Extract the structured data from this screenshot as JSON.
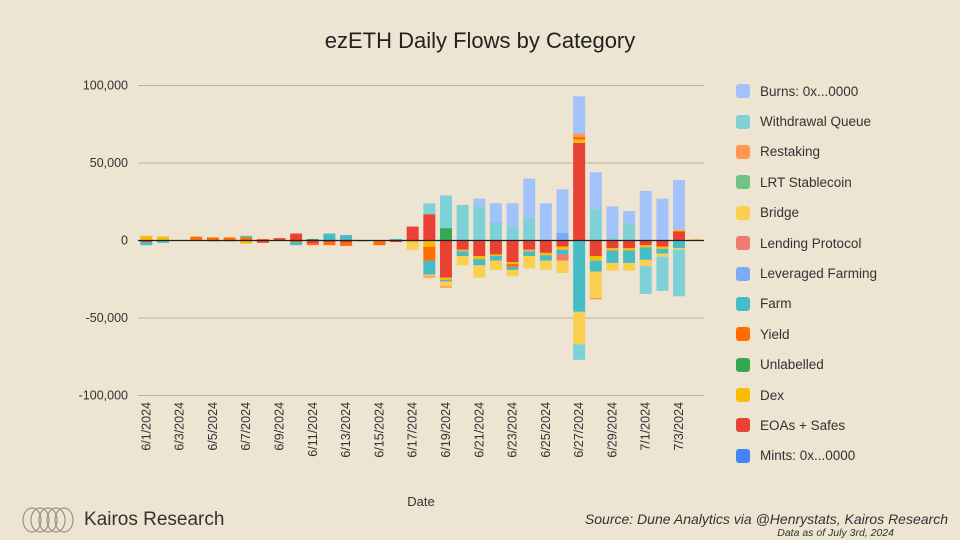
{
  "chart_data": {
    "type": "bar",
    "stacked": true,
    "title": "ezETH Daily Flows by Category",
    "xlabel": "Date",
    "ylabel": "",
    "ylim": [
      -100000,
      100000
    ],
    "y_ticks": [
      100000,
      50000,
      0,
      -50000,
      -100000
    ],
    "y_tick_labels": [
      "100,000",
      "50,000",
      "0",
      "-50,000",
      "-100,000"
    ],
    "categories": [
      "6/1/2024",
      "6/2/2024",
      "6/3/2024",
      "6/4/2024",
      "6/5/2024",
      "6/6/2024",
      "6/7/2024",
      "6/8/2024",
      "6/9/2024",
      "6/10/2024",
      "6/11/2024",
      "6/12/2024",
      "6/13/2024",
      "6/14/2024",
      "6/15/2024",
      "6/16/2024",
      "6/17/2024",
      "6/18/2024",
      "6/19/2024",
      "6/20/2024",
      "6/21/2024",
      "6/22/2024",
      "6/23/2024",
      "6/24/2024",
      "6/25/2024",
      "6/26/2024",
      "6/27/2024",
      "6/28/2024",
      "6/29/2024",
      "6/30/2024",
      "7/1/2024",
      "7/2/2024",
      "7/3/2024",
      "7/4/2024"
    ],
    "x_tick_labels": [
      "6/1/2024",
      "6/3/2024",
      "6/5/2024",
      "6/7/2024",
      "6/9/2024",
      "6/11/2024",
      "6/13/2024",
      "6/15/2024",
      "6/17/2024",
      "6/19/2024",
      "6/21/2024",
      "6/23/2024",
      "6/25/2024",
      "6/27/2024",
      "6/29/2024",
      "7/1/2024",
      "7/3/2024"
    ],
    "series": [
      {
        "name": "Mints: 0x...0000",
        "color": "#4285f4",
        "values": [
          0,
          0,
          0,
          0,
          0,
          0,
          0,
          0,
          0,
          0,
          0,
          0,
          0,
          0,
          0,
          0,
          0,
          0,
          0,
          0,
          0,
          0,
          0,
          0,
          0,
          0,
          0,
          0,
          0,
          0,
          0,
          0,
          0,
          0
        ]
      },
      {
        "name": "EOAs + Safes",
        "color": "#e94235",
        "values": [
          -1000,
          -500,
          0,
          500,
          -500,
          -500,
          -500,
          -1500,
          1500,
          4500,
          -2000,
          -1000,
          -1500,
          -500,
          -500,
          -1000,
          9000,
          17000,
          -24000,
          -6000,
          -10000,
          -9000,
          -14000,
          -6000,
          -8000,
          -4000,
          63000,
          -10000,
          -5000,
          -5000,
          -3000,
          -4000,
          6000,
          0
        ]
      },
      {
        "name": "Dex",
        "color": "#fbbc04",
        "values": [
          3000,
          2500,
          0,
          0,
          0,
          0,
          -1500,
          0,
          0,
          0,
          0,
          0,
          0,
          0,
          0,
          0,
          -1000,
          -4000,
          -1500,
          -1000,
          -2000,
          -1000,
          -1000,
          -1000,
          -1500,
          -2000,
          2000,
          -3000,
          -1500,
          -1500,
          -1500,
          -1500,
          1000,
          0
        ]
      },
      {
        "name": "Unlabelled",
        "color": "#34a853",
        "values": [
          0,
          0,
          0,
          0,
          0,
          0,
          0,
          0,
          0,
          0,
          1000,
          0,
          0,
          0,
          0,
          0,
          0,
          0,
          8000,
          0,
          0,
          0,
          0,
          0,
          0,
          0,
          0,
          0,
          0,
          0,
          0,
          0,
          0,
          0
        ]
      },
      {
        "name": "Yield",
        "color": "#ff6d01",
        "values": [
          0,
          0,
          0,
          2000,
          2000,
          2000,
          2000,
          1000,
          0,
          -1000,
          -1000,
          -2000,
          -2000,
          0,
          -2500,
          0,
          0,
          -9000,
          0,
          0,
          0,
          0,
          -2000,
          0,
          0,
          0,
          2000,
          0,
          0,
          0,
          0,
          0,
          0,
          0
        ]
      },
      {
        "name": "Farm",
        "color": "#46bdc6",
        "values": [
          -2000,
          -1000,
          0,
          0,
          0,
          0,
          1000,
          0,
          0,
          -2000,
          0,
          4500,
          3500,
          0,
          0,
          1000,
          0,
          -9000,
          -1000,
          -3000,
          -4000,
          -3000,
          -2000,
          -3000,
          -3500,
          -3000,
          -46000,
          -7000,
          -8000,
          -8000,
          -8000,
          -3000,
          -5000,
          0
        ]
      },
      {
        "name": "Leveraged Farming",
        "color": "#7baaf7",
        "values": [
          0,
          0,
          0,
          0,
          0,
          0,
          0,
          0,
          0,
          0,
          0,
          0,
          0,
          0,
          0,
          0,
          0,
          0,
          0,
          0,
          0,
          0,
          0,
          0,
          0,
          5000,
          0,
          0,
          0,
          0,
          0,
          0,
          0,
          0
        ]
      },
      {
        "name": "Lending Protocol",
        "color": "#f07b72",
        "values": [
          0,
          0,
          0,
          0,
          0,
          0,
          0,
          0,
          0,
          0,
          0,
          0,
          0,
          0,
          0,
          0,
          0,
          0,
          0,
          0,
          0,
          0,
          0,
          0,
          0,
          -4000,
          0,
          0,
          0,
          0,
          0,
          0,
          0,
          0
        ]
      },
      {
        "name": "Bridge",
        "color": "#fcd04f",
        "values": [
          0,
          0,
          0,
          0,
          0,
          0,
          0,
          0,
          0,
          0,
          0,
          0,
          0,
          0,
          0,
          0,
          -5000,
          -1000,
          -3000,
          -6000,
          -8000,
          -6000,
          -4000,
          -8000,
          -6000,
          -8000,
          -21000,
          -17000,
          -5000,
          -5000,
          -4000,
          -2000,
          -1000,
          1000
        ]
      },
      {
        "name": "LRT Stablecoin",
        "color": "#71c287",
        "values": [
          0,
          0,
          0,
          0,
          0,
          0,
          0,
          0,
          0,
          0,
          0,
          0,
          0,
          0,
          0,
          0,
          0,
          0,
          0,
          0,
          0,
          0,
          0,
          0,
          0,
          0,
          0,
          0,
          0,
          0,
          0,
          0,
          0,
          0
        ]
      },
      {
        "name": "Restaking",
        "color": "#ff994d",
        "values": [
          0,
          0,
          0,
          0,
          0,
          0,
          0,
          0,
          0,
          0,
          0,
          0,
          0,
          0,
          0,
          0,
          0,
          -1000,
          -1000,
          0,
          0,
          0,
          0,
          0,
          0,
          0,
          2000,
          -1000,
          0,
          0,
          0,
          0,
          0,
          0
        ]
      },
      {
        "name": "Withdrawal Queue",
        "color": "#7ed1d7",
        "values": [
          0,
          0,
          0,
          0,
          0,
          0,
          0,
          0,
          0,
          0,
          0,
          0,
          0,
          0,
          0,
          0,
          0,
          7000,
          21000,
          23000,
          22000,
          12000,
          9000,
          15000,
          0,
          0,
          -10000,
          20000,
          2000,
          11000,
          -18000,
          -22000,
          -30000,
          0
        ]
      },
      {
        "name": "Burns: 0x...0000",
        "color": "#a1c2fa",
        "values": [
          0,
          0,
          0,
          0,
          0,
          0,
          0,
          0,
          0,
          0,
          0,
          0,
          0,
          0,
          0,
          0,
          0,
          0,
          0,
          0,
          5000,
          12000,
          15000,
          25000,
          24000,
          28000,
          24000,
          24000,
          20000,
          8000,
          32000,
          27000,
          32000,
          0
        ]
      }
    ]
  },
  "legend": [
    {
      "label": "Burns: 0x...0000",
      "color": "#a1c2fa"
    },
    {
      "label": "Withdrawal Queue",
      "color": "#7ed1d7"
    },
    {
      "label": "Restaking",
      "color": "#ff994d"
    },
    {
      "label": "LRT Stablecoin",
      "color": "#71c287"
    },
    {
      "label": "Bridge",
      "color": "#fcd04f"
    },
    {
      "label": "Lending Protocol",
      "color": "#f07b72"
    },
    {
      "label": "Leveraged Farming",
      "color": "#7baaf7"
    },
    {
      "label": "Farm",
      "color": "#46bdc6"
    },
    {
      "label": "Yield",
      "color": "#ff6d01"
    },
    {
      "label": "Unlabelled",
      "color": "#34a853"
    },
    {
      "label": "Dex",
      "color": "#fbbc04"
    },
    {
      "label": "EOAs + Safes",
      "color": "#e94235"
    },
    {
      "label": "Mints: 0x...0000",
      "color": "#4285f4"
    }
  ],
  "footer": {
    "brand": "Kairos Research",
    "source": "Source: Dune Analytics via @Henrystats, Kairos Research",
    "as_of": "Data as of July 3rd, 2024"
  }
}
